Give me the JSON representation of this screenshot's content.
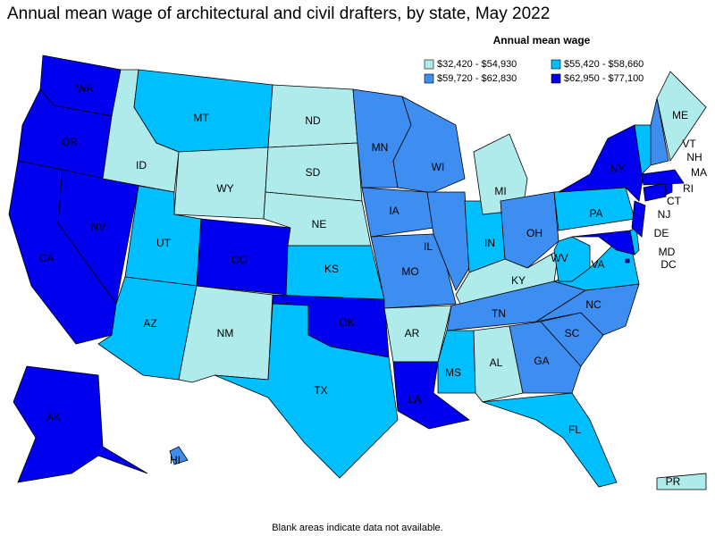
{
  "title": "Annual mean wage of architectural and civil drafters, by state, May 2022",
  "legend": {
    "title": "Annual mean wage",
    "items": [
      {
        "label": "$32,420 - $54,930",
        "color": "#b0ebeb"
      },
      {
        "label": "$55,420 - $58,660",
        "color": "#00bfff"
      },
      {
        "label": "$59,720 - $62,830",
        "color": "#3d8ef0"
      },
      {
        "label": "$62,950 - $77,100",
        "color": "#0000ee"
      }
    ]
  },
  "states": [
    {
      "label": "WA",
      "color": "#0000ee"
    },
    {
      "label": "OR",
      "color": "#0000ee"
    },
    {
      "label": "CA",
      "color": "#0000ee"
    },
    {
      "label": "NV",
      "color": "#0000ee"
    },
    {
      "label": "ID",
      "color": "#b0ebeb"
    },
    {
      "label": "MT",
      "color": "#00bfff"
    },
    {
      "label": "WY",
      "color": "#b0ebeb"
    },
    {
      "label": "UT",
      "color": "#00bfff"
    },
    {
      "label": "CO",
      "color": "#0000ee"
    },
    {
      "label": "AZ",
      "color": "#00bfff"
    },
    {
      "label": "NM",
      "color": "#b0ebeb"
    },
    {
      "label": "ND",
      "color": "#b0ebeb"
    },
    {
      "label": "SD",
      "color": "#b0ebeb"
    },
    {
      "label": "NE",
      "color": "#b0ebeb"
    },
    {
      "label": "KS",
      "color": "#00bfff"
    },
    {
      "label": "OK",
      "color": "#0000ee"
    },
    {
      "label": "TX",
      "color": "#00bfff"
    },
    {
      "label": "MN",
      "color": "#3d8ef0"
    },
    {
      "label": "IA",
      "color": "#3d8ef0"
    },
    {
      "label": "MO",
      "color": "#3d8ef0"
    },
    {
      "label": "AR",
      "color": "#b0ebeb"
    },
    {
      "label": "LA",
      "color": "#0000ee"
    },
    {
      "label": "WI",
      "color": "#3d8ef0"
    },
    {
      "label": "IL",
      "color": "#3d8ef0"
    },
    {
      "label": "IN",
      "color": "#00bfff"
    },
    {
      "label": "MI",
      "color": "#b0ebeb"
    },
    {
      "label": "OH",
      "color": "#3d8ef0"
    },
    {
      "label": "KY",
      "color": "#b0ebeb"
    },
    {
      "label": "TN",
      "color": "#3d8ef0"
    },
    {
      "label": "MS",
      "color": "#00bfff"
    },
    {
      "label": "AL",
      "color": "#b0ebeb"
    },
    {
      "label": "GA",
      "color": "#3d8ef0"
    },
    {
      "label": "FL",
      "color": "#00bfff"
    },
    {
      "label": "SC",
      "color": "#3d8ef0"
    },
    {
      "label": "NC",
      "color": "#3d8ef0"
    },
    {
      "label": "VA",
      "color": "#00bfff"
    },
    {
      "label": "WV",
      "color": "#00bfff"
    },
    {
      "label": "PA",
      "color": "#00bfff"
    },
    {
      "label": "NY",
      "color": "#0000ee"
    },
    {
      "label": "MD",
      "color": "#0000ee"
    },
    {
      "label": "DE",
      "color": "#00bfff"
    },
    {
      "label": "NJ",
      "color": "#0000ee"
    },
    {
      "label": "CT",
      "color": "#0000ee"
    },
    {
      "label": "RI",
      "color": "#0000ee"
    },
    {
      "label": "MA",
      "color": "#0000ee"
    },
    {
      "label": "VT",
      "color": "#00bfff"
    },
    {
      "label": "NH",
      "color": "#3d8ef0"
    },
    {
      "label": "ME",
      "color": "#b0ebeb"
    },
    {
      "label": "AK",
      "color": "#0000ee"
    },
    {
      "label": "HI",
      "color": "#3d8ef0"
    },
    {
      "label": "PR",
      "color": "#b0ebeb"
    },
    {
      "label": "DC",
      "color": "#0000ee"
    }
  ],
  "footnote": "Blank areas indicate data not available."
}
